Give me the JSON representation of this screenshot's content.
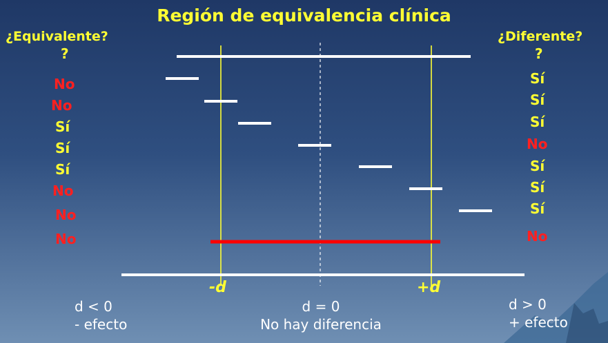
{
  "title": "Región de equivalencia clínica",
  "left_header": "¿Equivalente?",
  "right_header": "¿Diferente?",
  "left_answers": [
    "?",
    "No",
    "No",
    "Sí",
    "Sí",
    "Sí",
    "No",
    "No",
    "No"
  ],
  "right_answers": [
    "?",
    "Sí",
    "Sí",
    "Sí",
    "No",
    "Sí",
    "Sí",
    "Sí",
    "No"
  ],
  "markers": {
    "minus_d": "-d",
    "plus_d": "+d"
  },
  "bottom": {
    "left_line1": "d < 0",
    "left_line2": "- efecto",
    "center_line1": "d = 0",
    "center_line2": "No hay diferencia",
    "right_line1": "d > 0",
    "right_line2": "+ efecto"
  },
  "colors": {
    "yes": "#ffff33",
    "no": "#ff2020",
    "interval": "#ffffff",
    "highlight": "#ff0000",
    "bound": "#ffff33"
  }
}
